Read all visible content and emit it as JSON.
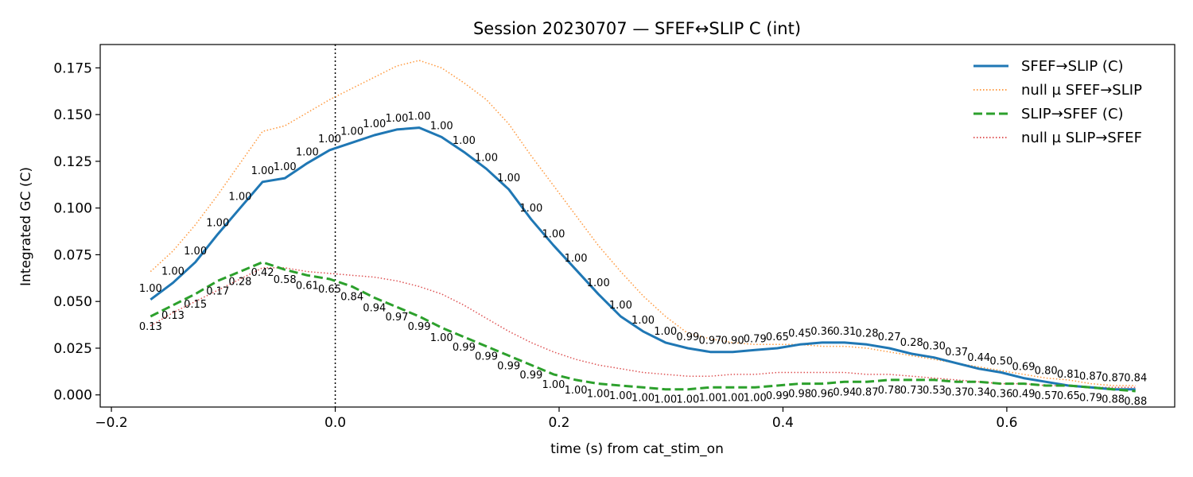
{
  "chart_data": {
    "type": "line",
    "title": "Session 20230707 — SFEF↔SLIP C (int)",
    "xlabel": "time (s) from cat_stim_on",
    "ylabel": "Integrated GC (C)",
    "xlim": [
      -0.21,
      0.75
    ],
    "ylim": [
      -0.0065,
      0.1875
    ],
    "xticks": [
      -0.2,
      0.0,
      0.2,
      0.4,
      0.6
    ],
    "xtick_labels": [
      "−0.2",
      "0.0",
      "0.2",
      "0.4",
      "0.6"
    ],
    "yticks": [
      0.0,
      0.025,
      0.05,
      0.075,
      0.1,
      0.125,
      0.15,
      0.175
    ],
    "ytick_labels": [
      "0.000",
      "0.025",
      "0.050",
      "0.075",
      "0.100",
      "0.125",
      "0.150",
      "0.175"
    ],
    "grid": false,
    "legend_position": "top-right",
    "vline_x": 0.0,
    "x": [
      -0.165,
      -0.145,
      -0.125,
      -0.105,
      -0.085,
      -0.065,
      -0.045,
      -0.025,
      -0.005,
      0.015,
      0.035,
      0.055,
      0.075,
      0.095,
      0.115,
      0.135,
      0.155,
      0.175,
      0.195,
      0.215,
      0.235,
      0.255,
      0.275,
      0.295,
      0.315,
      0.335,
      0.355,
      0.375,
      0.395,
      0.415,
      0.435,
      0.455,
      0.475,
      0.495,
      0.515,
      0.535,
      0.555,
      0.575,
      0.595,
      0.615,
      0.635,
      0.655,
      0.675,
      0.695,
      0.715
    ],
    "series": [
      {
        "name": "SFEF→SLIP (C)",
        "color": "#1f77b4",
        "style": "solid",
        "values": [
          0.051,
          0.06,
          0.071,
          0.086,
          0.1,
          0.114,
          0.116,
          0.124,
          0.131,
          0.135,
          0.139,
          0.142,
          0.143,
          0.138,
          0.13,
          0.121,
          0.11,
          0.094,
          0.08,
          0.067,
          0.054,
          0.042,
          0.034,
          0.028,
          0.025,
          0.023,
          0.023,
          0.024,
          0.025,
          0.027,
          0.028,
          0.028,
          0.027,
          0.025,
          0.022,
          0.02,
          0.017,
          0.014,
          0.012,
          0.009,
          0.007,
          0.005,
          0.004,
          0.003,
          0.003
        ],
        "point_labels": [
          "1.00",
          "1.00",
          "1.00",
          "1.00",
          "1.00",
          "1.00",
          "1.00",
          "1.00",
          "1.00",
          "1.00",
          "1.00",
          "1.00",
          "1.00",
          "1.00",
          "1.00",
          "1.00",
          "1.00",
          "1.00",
          "1.00",
          "1.00",
          "1.00",
          "1.00",
          "1.00",
          "1.00",
          "0.99",
          "0.97",
          "0.90",
          "0.79",
          "0.65",
          "0.45",
          "0.36",
          "0.31",
          "0.28",
          "0.27",
          "0.28",
          "0.30",
          "0.37",
          "0.44",
          "0.50",
          "0.69",
          "0.80",
          "0.81",
          "0.87",
          "0.87",
          "0.84"
        ]
      },
      {
        "name": "null µ SFEF→SLIP",
        "color": "#ff7f0e",
        "style": "dotted",
        "values": [
          0.066,
          0.077,
          0.091,
          0.107,
          0.124,
          0.141,
          0.144,
          0.151,
          0.158,
          0.164,
          0.17,
          0.176,
          0.179,
          0.175,
          0.167,
          0.158,
          0.145,
          0.128,
          0.112,
          0.096,
          0.08,
          0.066,
          0.053,
          0.042,
          0.033,
          0.03,
          0.028,
          0.027,
          0.027,
          0.027,
          0.026,
          0.026,
          0.025,
          0.023,
          0.021,
          0.019,
          0.017,
          0.015,
          0.013,
          0.011,
          0.009,
          0.008,
          0.006,
          0.005,
          0.005
        ]
      },
      {
        "name": "SLIP→SFEF (C)",
        "color": "#2ca02c",
        "style": "dashed",
        "values": [
          0.042,
          0.048,
          0.054,
          0.061,
          0.066,
          0.071,
          0.067,
          0.064,
          0.062,
          0.058,
          0.052,
          0.047,
          0.042,
          0.036,
          0.031,
          0.026,
          0.021,
          0.016,
          0.011,
          0.008,
          0.006,
          0.005,
          0.004,
          0.003,
          0.003,
          0.004,
          0.004,
          0.004,
          0.005,
          0.006,
          0.006,
          0.007,
          0.007,
          0.008,
          0.008,
          0.008,
          0.007,
          0.007,
          0.006,
          0.006,
          0.005,
          0.005,
          0.004,
          0.003,
          0.002
        ],
        "point_labels": [
          "0.13",
          "0.13",
          "0.15",
          "0.17",
          "0.28",
          "0.42",
          "0.58",
          "0.61",
          "0.65",
          "0.84",
          "0.94",
          "0.97",
          "0.99",
          "1.00",
          "0.99",
          "0.99",
          "0.99",
          "0.99",
          "1.00",
          "1.00",
          "1.00",
          "1.00",
          "1.00",
          "1.00",
          "1.00",
          "1.00",
          "1.00",
          "1.00",
          "0.99",
          "0.98",
          "0.96",
          "0.94",
          "0.87",
          "0.78",
          "0.73",
          "0.53",
          "0.37",
          "0.34",
          "0.36",
          "0.49",
          "0.57",
          "0.65",
          "0.79",
          "0.88",
          "0.88"
        ]
      },
      {
        "name": "null µ SLIP→SFEF",
        "color": "#d62728",
        "style": "dotted",
        "values": [
          0.037,
          0.044,
          0.05,
          0.056,
          0.062,
          0.068,
          0.068,
          0.066,
          0.065,
          0.064,
          0.063,
          0.061,
          0.058,
          0.054,
          0.048,
          0.041,
          0.034,
          0.028,
          0.023,
          0.019,
          0.016,
          0.014,
          0.012,
          0.011,
          0.01,
          0.01,
          0.011,
          0.011,
          0.012,
          0.012,
          0.012,
          0.012,
          0.011,
          0.011,
          0.01,
          0.009,
          0.008,
          0.007,
          0.006,
          0.006,
          0.005,
          0.005,
          0.004,
          0.004,
          0.004
        ]
      }
    ]
  }
}
